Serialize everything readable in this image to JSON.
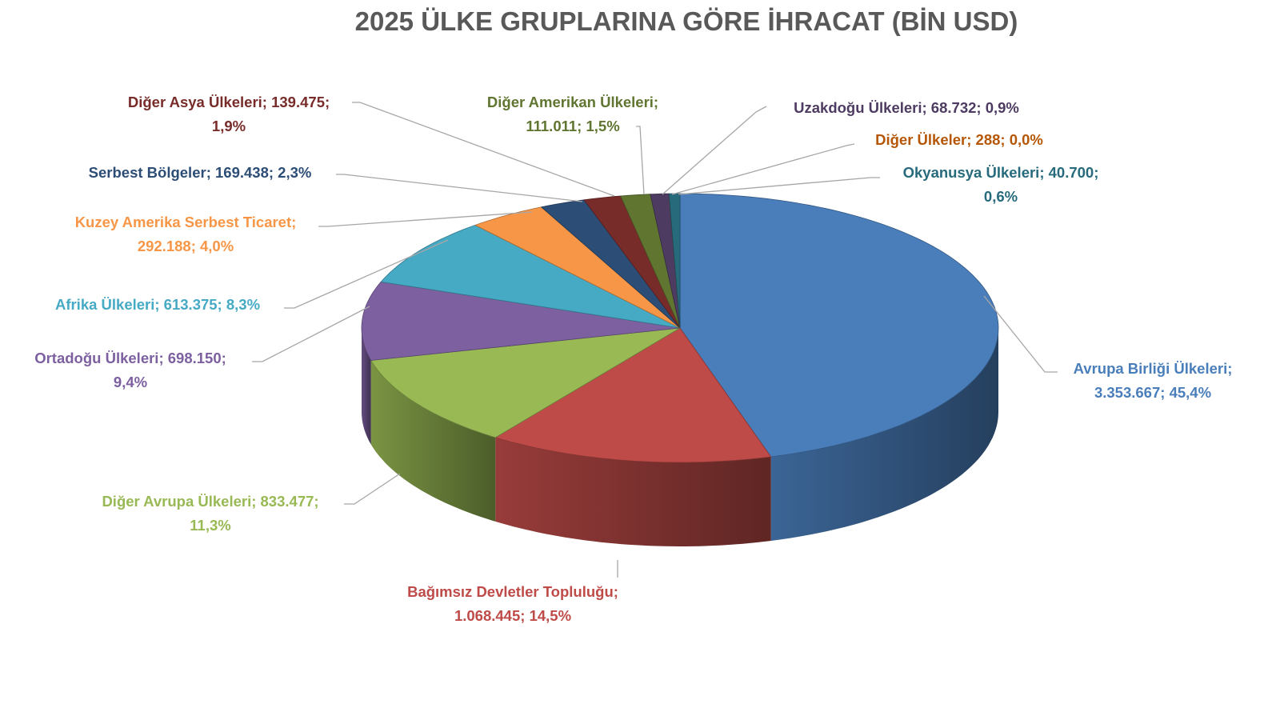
{
  "chart_data": {
    "type": "pie",
    "style": "3d",
    "title": "2025 ÜLKE GRUPLARINA GÖRE İHRACAT (BİN USD)",
    "slices": [
      {
        "name": "Avrupa Birliği Ülkeleri",
        "value": 3353667,
        "percent": 45.4,
        "line1": "Avrupa Birliği Ülkeleri;",
        "line2": "3.353.667; 45,4%",
        "color": "#4a7ebb",
        "label_color": "#4a7ebb"
      },
      {
        "name": "Bağımsız Devletler Topluluğu",
        "value": 1068445,
        "percent": 14.5,
        "line1": "Bağımsız Devletler Topluluğu;",
        "line2": "1.068.445; 14,5%",
        "color": "#be4b48",
        "label_color": "#be4b48"
      },
      {
        "name": "Diğer Avrupa Ülkeleri",
        "value": 833477,
        "percent": 11.3,
        "line1": "Diğer Avrupa Ülkeleri; 833.477;",
        "line2": "11,3%",
        "color": "#98b954",
        "label_color": "#98b954"
      },
      {
        "name": "Ortadoğu Ülkeleri",
        "value": 698150,
        "percent": 9.4,
        "line1": "Ortadoğu Ülkeleri; 698.150;",
        "line2": "9,4%",
        "color": "#7d60a0",
        "label_color": "#7d60a0"
      },
      {
        "name": "Afrika Ülkeleri",
        "value": 613375,
        "percent": 8.3,
        "line1": "Afrika Ülkeleri; 613.375; 8,3%",
        "line2": "",
        "color": "#46aac5",
        "label_color": "#46aac5"
      },
      {
        "name": "Kuzey Amerika Serbest Ticaret",
        "value": 292188,
        "percent": 4.0,
        "line1": "Kuzey Amerika Serbest Ticaret;",
        "line2": "292.188; 4,0%",
        "color": "#f79646",
        "label_color": "#f79646"
      },
      {
        "name": "Serbest Bölgeler",
        "value": 169438,
        "percent": 2.3,
        "line1": "Serbest Bölgeler; 169.438; 2,3%",
        "line2": "",
        "color": "#2c4d75",
        "label_color": "#2c4d75"
      },
      {
        "name": "Diğer Asya Ülkeleri",
        "value": 139475,
        "percent": 1.9,
        "line1": "Diğer Asya Ülkeleri; 139.475;",
        "line2": "1,9%",
        "color": "#772c2a",
        "label_color": "#772c2a"
      },
      {
        "name": "Diğer Amerikan Ülkeleri",
        "value": 111011,
        "percent": 1.5,
        "line1": "Diğer Amerikan Ülkeleri;",
        "line2": "111.011; 1,5%",
        "color": "#5f7530",
        "label_color": "#5f7530"
      },
      {
        "name": "Uzakdoğu Ülkeleri",
        "value": 68732,
        "percent": 0.9,
        "line1": "Uzakdoğu Ülkeleri; 68.732; 0,9%",
        "line2": "",
        "color": "#4d3b62",
        "label_color": "#4d3b62"
      },
      {
        "name": "Diğer Ülkeler",
        "value": 288,
        "percent": 0.0,
        "line1": "Diğer Ülkeler; 288; 0,0%",
        "line2": "",
        "color": "#b65708",
        "label_color": "#b65708"
      },
      {
        "name": "Okyanusya Ülkeleri",
        "value": 40700,
        "percent": 0.6,
        "line1": "Okyanusya Ülkeleri; 40.700;",
        "line2": "0,6%",
        "color": "#276a7c",
        "label_color": "#276a7c"
      }
    ]
  }
}
